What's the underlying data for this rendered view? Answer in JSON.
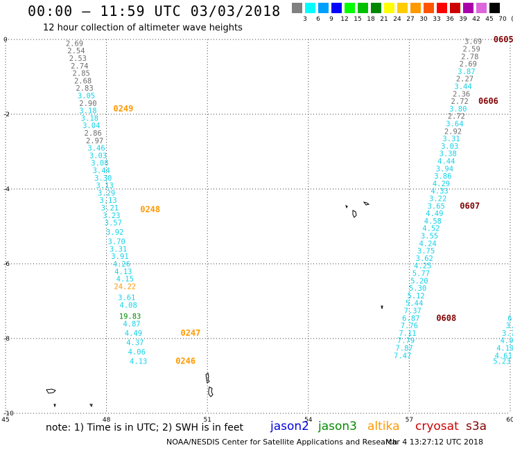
{
  "header": {
    "title": "00:00 – 11:59 UTC 03/03/2018",
    "subtitle": "12 hour collection of altimeter wave heights"
  },
  "color_scale": {
    "labels": [
      "3",
      "6",
      "9",
      "12",
      "15",
      "18",
      "21",
      "24",
      "27",
      "30",
      "33",
      "36",
      "39",
      "42",
      "45",
      "70",
      "(ft)"
    ],
    "colors": [
      "#808080",
      "#00ffff",
      "#00a0ff",
      "#0000ff",
      "#00ff00",
      "#00c000",
      "#008800",
      "#ffff00",
      "#ffcc00",
      "#ff9900",
      "#ff5500",
      "#ff0000",
      "#cc0000",
      "#aa00aa",
      "#dd66dd",
      "#000000"
    ]
  },
  "chart_data": {
    "type": "scatter",
    "title": "12 hour collection of altimeter wave heights",
    "x_ticks": [
      "45",
      "48",
      "51",
      "54",
      "57",
      "60"
    ],
    "y_ticks": [
      "0",
      "-2",
      "-4",
      "-6",
      "-8",
      "-10"
    ],
    "xlim": [
      45,
      60
    ],
    "ylim": [
      -10,
      0
    ],
    "grid": true,
    "colors": {
      "grey": "#6e6e6e",
      "cyan": "#16d2e8",
      "orange": "#ff9900",
      "green": "#008a00",
      "darkred": "#800000",
      "white": "#ffffff"
    },
    "series": [
      {
        "name": "jason3",
        "points": [
          {
            "x": 47.05,
            "y": -0.1,
            "label": "2.69",
            "color": "grey"
          },
          {
            "x": 47.1,
            "y": -0.3,
            "label": "2.54",
            "color": "grey"
          },
          {
            "x": 47.15,
            "y": -0.5,
            "label": "2.53",
            "color": "grey"
          },
          {
            "x": 47.2,
            "y": -0.7,
            "label": "2.74",
            "color": "grey"
          },
          {
            "x": 47.25,
            "y": -0.9,
            "label": "2.85",
            "color": "grey"
          },
          {
            "x": 47.3,
            "y": -1.1,
            "label": "2.68",
            "color": "grey"
          },
          {
            "x": 47.35,
            "y": -1.3,
            "label": "2.83",
            "color": "grey"
          },
          {
            "x": 47.4,
            "y": -1.5,
            "label": "3.05",
            "color": "cyan"
          },
          {
            "x": 47.45,
            "y": -1.7,
            "label": "2.90",
            "color": "grey"
          },
          {
            "x": 47.45,
            "y": -1.9,
            "label": "3.18",
            "color": "cyan"
          },
          {
            "x": 47.5,
            "y": -2.1,
            "label": "3.18",
            "color": "cyan"
          },
          {
            "x": 47.55,
            "y": -2.3,
            "label": "3.04",
            "color": "cyan"
          },
          {
            "x": 47.6,
            "y": -2.5,
            "label": "2.86",
            "color": "grey"
          },
          {
            "x": 47.65,
            "y": -2.7,
            "label": "2.97",
            "color": "grey"
          },
          {
            "x": 47.7,
            "y": -2.9,
            "label": "3.46",
            "color": "cyan"
          },
          {
            "x": 47.75,
            "y": -3.1,
            "label": "3.03",
            "color": "cyan"
          },
          {
            "x": 47.8,
            "y": -3.3,
            "label": "3.08",
            "color": "cyan"
          },
          {
            "x": 47.85,
            "y": -3.5,
            "label": "3.44",
            "color": "cyan"
          },
          {
            "x": 47.9,
            "y": -3.7,
            "label": "3.30",
            "color": "cyan"
          },
          {
            "x": 47.95,
            "y": -3.9,
            "label": "3.13",
            "color": "cyan"
          },
          {
            "x": 48.0,
            "y": -4.1,
            "label": "3.29",
            "color": "cyan"
          },
          {
            "x": 48.05,
            "y": -4.3,
            "label": "3.13",
            "color": "cyan"
          },
          {
            "x": 48.1,
            "y": -4.5,
            "label": "3.21",
            "color": "cyan"
          },
          {
            "x": 48.15,
            "y": -4.7,
            "label": "3.23",
            "color": "cyan"
          },
          {
            "x": 48.2,
            "y": -4.9,
            "label": "3.57",
            "color": "cyan"
          },
          {
            "x": 48.25,
            "y": -5.15,
            "label": "3.92",
            "color": "cyan"
          },
          {
            "x": 48.3,
            "y": -5.4,
            "label": "3.70",
            "color": "cyan"
          },
          {
            "x": 48.35,
            "y": -5.6,
            "label": "3.31",
            "color": "cyan"
          },
          {
            "x": 48.4,
            "y": -5.8,
            "label": "3.91",
            "color": "cyan"
          },
          {
            "x": 48.45,
            "y": -6.0,
            "label": "4.26",
            "color": "cyan"
          },
          {
            "x": 48.5,
            "y": -6.2,
            "label": "4.13",
            "color": "cyan"
          },
          {
            "x": 48.55,
            "y": -6.4,
            "label": "4.15",
            "color": "cyan"
          },
          {
            "x": 48.55,
            "y": -6.6,
            "label": "24.22",
            "color": "orange"
          },
          {
            "x": 48.6,
            "y": -6.9,
            "label": "3.61",
            "color": "cyan"
          },
          {
            "x": 48.65,
            "y": -7.1,
            "label": "4.08",
            "color": "cyan"
          },
          {
            "x": 48.7,
            "y": -7.4,
            "label": "19.83",
            "color": "green"
          },
          {
            "x": 48.75,
            "y": -7.6,
            "label": "4.87",
            "color": "cyan"
          },
          {
            "x": 48.8,
            "y": -7.85,
            "label": "4.49",
            "color": "cyan"
          },
          {
            "x": 48.85,
            "y": -8.1,
            "label": "4.37",
            "color": "cyan"
          },
          {
            "x": 48.9,
            "y": -8.35,
            "label": "4.06",
            "color": "cyan"
          },
          {
            "x": 48.95,
            "y": -8.6,
            "label": "4.13",
            "color": "cyan"
          }
        ],
        "time_labels": [
          {
            "x": 48.5,
            "y": -1.85,
            "label": "0249",
            "color": "orange"
          },
          {
            "x": 49.3,
            "y": -4.55,
            "label": "0248",
            "color": "orange"
          },
          {
            "x": 50.5,
            "y": -7.85,
            "label": "0247",
            "color": "orange"
          },
          {
            "x": 50.35,
            "y": -8.6,
            "label": "0246",
            "color": "orange"
          }
        ]
      },
      {
        "name": "cryosat",
        "points": [
          {
            "x": 58.9,
            "y": -0.05,
            "label": "3.69",
            "color": "grey"
          },
          {
            "x": 58.85,
            "y": -0.25,
            "label": "2.59",
            "color": "grey"
          },
          {
            "x": 58.8,
            "y": -0.45,
            "label": "2.78",
            "color": "grey"
          },
          {
            "x": 58.75,
            "y": -0.65,
            "label": "2.69",
            "color": "grey"
          },
          {
            "x": 58.7,
            "y": -0.85,
            "label": "3.87",
            "color": "cyan"
          },
          {
            "x": 58.65,
            "y": -1.05,
            "label": "2.27",
            "color": "grey"
          },
          {
            "x": 58.6,
            "y": -1.25,
            "label": "3.44",
            "color": "cyan"
          },
          {
            "x": 58.55,
            "y": -1.45,
            "label": "2.36",
            "color": "grey"
          },
          {
            "x": 58.5,
            "y": -1.65,
            "label": "2.72",
            "color": "grey"
          },
          {
            "x": 58.45,
            "y": -1.85,
            "label": "3.80",
            "color": "cyan"
          },
          {
            "x": 58.4,
            "y": -2.05,
            "label": "2.72",
            "color": "grey"
          },
          {
            "x": 58.35,
            "y": -2.25,
            "label": "3.64",
            "color": "cyan"
          },
          {
            "x": 58.3,
            "y": -2.45,
            "label": "2.92",
            "color": "grey"
          },
          {
            "x": 58.25,
            "y": -2.65,
            "label": "3.31",
            "color": "cyan"
          },
          {
            "x": 58.2,
            "y": -2.85,
            "label": "3.03",
            "color": "cyan"
          },
          {
            "x": 58.15,
            "y": -3.05,
            "label": "3.38",
            "color": "cyan"
          },
          {
            "x": 58.1,
            "y": -3.25,
            "label": "4.44",
            "color": "cyan"
          },
          {
            "x": 58.05,
            "y": -3.45,
            "label": "3.94",
            "color": "cyan"
          },
          {
            "x": 58.0,
            "y": -3.65,
            "label": "3.86",
            "color": "cyan"
          },
          {
            "x": 57.95,
            "y": -3.85,
            "label": "4.29",
            "color": "cyan"
          },
          {
            "x": 57.9,
            "y": -4.05,
            "label": "4.33",
            "color": "cyan"
          },
          {
            "x": 57.85,
            "y": -4.25,
            "label": "3.22",
            "color": "cyan"
          },
          {
            "x": 57.8,
            "y": -4.45,
            "label": "3.65",
            "color": "cyan"
          },
          {
            "x": 57.75,
            "y": -4.65,
            "label": "4.49",
            "color": "cyan"
          },
          {
            "x": 57.7,
            "y": -4.85,
            "label": "4.58",
            "color": "cyan"
          },
          {
            "x": 57.65,
            "y": -5.05,
            "label": "4.52",
            "color": "cyan"
          },
          {
            "x": 57.6,
            "y": -5.25,
            "label": "3.55",
            "color": "cyan"
          },
          {
            "x": 57.55,
            "y": -5.45,
            "label": "4.24",
            "color": "cyan"
          },
          {
            "x": 57.5,
            "y": -5.65,
            "label": "3.75",
            "color": "cyan"
          },
          {
            "x": 57.45,
            "y": -5.85,
            "label": "3.62",
            "color": "cyan"
          },
          {
            "x": 57.4,
            "y": -6.05,
            "label": "4.25",
            "color": "cyan"
          },
          {
            "x": 57.35,
            "y": -6.25,
            "label": "5.77",
            "color": "cyan"
          },
          {
            "x": 57.3,
            "y": -6.45,
            "label": "5.20",
            "color": "cyan"
          },
          {
            "x": 57.25,
            "y": -6.65,
            "label": "5.30",
            "color": "cyan"
          },
          {
            "x": 57.2,
            "y": -6.85,
            "label": "5.12",
            "color": "cyan"
          },
          {
            "x": 57.15,
            "y": -7.05,
            "label": "5.44",
            "color": "cyan"
          },
          {
            "x": 57.1,
            "y": -7.25,
            "label": "7.37",
            "color": "cyan"
          },
          {
            "x": 57.05,
            "y": -7.45,
            "label": "6.87",
            "color": "cyan"
          },
          {
            "x": 57.0,
            "y": -7.65,
            "label": "7.76",
            "color": "cyan"
          },
          {
            "x": 56.95,
            "y": -7.85,
            "label": "7.11",
            "color": "cyan"
          },
          {
            "x": 56.9,
            "y": -8.05,
            "label": "7.79",
            "color": "cyan"
          },
          {
            "x": 56.85,
            "y": -8.25,
            "label": "7.87",
            "color": "cyan"
          },
          {
            "x": 56.8,
            "y": -8.45,
            "label": "7.47",
            "color": "cyan"
          }
        ],
        "time_labels": [
          {
            "x": 59.8,
            "y": 0.0,
            "label": "0605",
            "color": "darkred"
          },
          {
            "x": 59.35,
            "y": -1.65,
            "label": "0606",
            "color": "darkred"
          },
          {
            "x": 58.8,
            "y": -4.45,
            "label": "0607",
            "color": "darkred"
          },
          {
            "x": 58.1,
            "y": -7.45,
            "label": "0608",
            "color": "darkred"
          }
        ]
      },
      {
        "name": "s3a",
        "points": [
          {
            "x": 60.05,
            "y": -7.45,
            "label": "6.",
            "color": "cyan"
          },
          {
            "x": 60.0,
            "y": -7.65,
            "label": "3.",
            "color": "cyan"
          },
          {
            "x": 59.95,
            "y": -7.85,
            "label": "3.7",
            "color": "cyan"
          },
          {
            "x": 59.9,
            "y": -8.05,
            "label": "4.9",
            "color": "cyan"
          },
          {
            "x": 59.85,
            "y": -8.25,
            "label": "4.19",
            "color": "cyan"
          },
          {
            "x": 59.8,
            "y": -8.45,
            "label": "4.61",
            "color": "cyan"
          },
          {
            "x": 59.75,
            "y": -8.6,
            "label": "5.23",
            "color": "cyan"
          }
        ]
      }
    ]
  },
  "footer": {
    "note": "note:  1) Time is in UTC;  2) SWH is in feet",
    "satellites": [
      {
        "name": "jason2",
        "color": "#0000dd"
      },
      {
        "name": "jason3",
        "color": "#008a00"
      },
      {
        "name": "altika",
        "color": "#ff9900"
      },
      {
        "name": "cryosat",
        "color": "#cc0000"
      },
      {
        "name": "s3a",
        "color": "#800000"
      }
    ],
    "credit": "NOAA/NESDIS Center for Satellite Applications and Research",
    "timestamp": "Mar  4 13:27:12 UTC 2018"
  }
}
